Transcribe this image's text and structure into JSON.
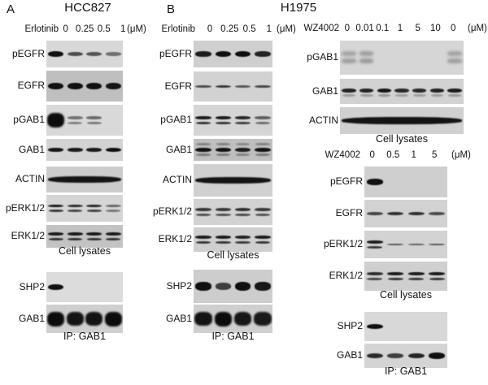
{
  "panels": [
    {
      "label": "A",
      "title": "HCC827"
    },
    {
      "label": "B",
      "title": "H1975"
    }
  ],
  "columns": [
    {
      "panel": "A",
      "cell_line": "HCC827",
      "sections": [
        {
          "header": {
            "drug": "Erlotinib",
            "doses": [
              "0",
              "0.25",
              "0.5",
              "1"
            ],
            "unit": "(μM)"
          },
          "blots": [
            {
              "label": "pEGFR",
              "style": "single",
              "thick": 7,
              "bg": "#d8d8d8",
              "lanes": [
                1,
                0.55,
                0.5,
                0.3
              ]
            },
            {
              "label": "EGFR",
              "style": "single",
              "thick": 8,
              "bg": "#bfbfbf",
              "lanes": [
                1,
                1,
                1,
                0.95
              ]
            },
            {
              "label": "pGAB1",
              "style": "double",
              "laneStyles": [
                "blob",
                "double",
                "double",
                ""
              ],
              "bg": "#d9d9d9",
              "lanes": [
                1,
                0.3,
                0.35,
                0
              ]
            },
            {
              "label": "GAB1",
              "style": "single",
              "thick": 5,
              "bg": "#d3d3d3",
              "lanes": [
                0.95,
                0.9,
                0.9,
                1
              ]
            },
            {
              "label": "ACTIN",
              "style": "continuous",
              "thick": 8,
              "bg": "#cccccc",
              "lanes": [
                1
              ]
            },
            {
              "label": "pERK1/2",
              "style": "double",
              "bg": "#d5d5d5",
              "lanes": [
                1,
                0.85,
                0.9,
                0.35
              ]
            },
            {
              "label": "ERK1/2",
              "style": "double",
              "bg": "#c3c3c3",
              "lanes": [
                1,
                1,
                1,
                1
              ]
            }
          ],
          "caption": "Cell lysates"
        },
        {
          "blots": [
            {
              "label": "SHP2",
              "style": "single",
              "thick": 7,
              "bg": "#dcdcdc",
              "lanes": [
                1,
                0,
                0,
                0
              ]
            },
            {
              "label": "GAB1",
              "style": "blob",
              "bg": "#cfcfcf",
              "lanes": [
                1,
                0.85,
                0.85,
                1
              ]
            }
          ],
          "caption": "IP: GAB1"
        }
      ]
    },
    {
      "panel": "B",
      "cell_line": "H1975",
      "sections": [
        {
          "header": {
            "drug": "Erlotinib",
            "doses": [
              "0",
              "0.25",
              "0.5",
              "1"
            ],
            "unit": "(μM)"
          },
          "blots": [
            {
              "label": "pEGFR",
              "style": "single",
              "thick": 7,
              "bg": "#cfcfcf",
              "lanes": [
                0.9,
                1,
                1,
                0.85
              ]
            },
            {
              "label": "EGFR",
              "style": "single",
              "thick": 4,
              "bg": "#d2d2d2",
              "lanes": [
                0.55,
                0.7,
                0.5,
                0.6
              ]
            },
            {
              "label": "pGAB1",
              "style": "double",
              "bg": "#d5d5d5",
              "lanes": [
                1,
                1,
                0.9,
                0.45
              ]
            },
            {
              "label": "GAB1",
              "style": "triple",
              "bg": "#bfbfbf",
              "lanes": [
                1,
                1,
                0.9,
                1
              ]
            },
            {
              "label": "ACTIN",
              "style": "continuous",
              "thick": 8,
              "bg": "#d0d0d0",
              "lanes": [
                1
              ]
            },
            {
              "label": "pERK1/2",
              "style": "double",
              "bg": "#d2d2d2",
              "lanes": [
                0.75,
                0.75,
                0.8,
                0.75
              ]
            },
            {
              "label": "ERK1/2",
              "style": "double",
              "bg": "#cfcfcf",
              "lanes": [
                1,
                1,
                0.95,
                1
              ]
            }
          ],
          "caption": "Cell lysates"
        },
        {
          "blots": [
            {
              "label": "SHP2",
              "style": "single",
              "thick": 10,
              "bg": "#cdcdcd",
              "lanes": [
                1,
                0.65,
                1,
                0.95
              ]
            },
            {
              "label": "GAB1",
              "style": "blob",
              "bg": "#cfcfcf",
              "lanes": [
                0.85,
                1,
                0.8,
                0.75
              ]
            }
          ],
          "caption": "IP: GAB1"
        }
      ]
    },
    {
      "panel": "B",
      "cell_line": "H1975",
      "sections": [
        {
          "header": {
            "drug": "WZ4002",
            "doses": [
              "0",
              "0.01",
              "0.1",
              "1",
              "5",
              "10",
              "0"
            ],
            "unit": "(μM)"
          },
          "blots": [
            {
              "label": "pGAB1",
              "style": "smear",
              "bg": "#d6d6d6",
              "lanes": [
                0.5,
                0.55,
                0,
                0,
                0,
                0,
                0.5
              ]
            },
            {
              "label": "GAB1",
              "style": "shadowed",
              "thick": 5,
              "bg": "#d2d2d2",
              "lanes": [
                0.9,
                0.9,
                1,
                0.85,
                0.85,
                0.9,
                0.95
              ]
            },
            {
              "label": "ACTIN",
              "style": "continuous",
              "thick": 9,
              "bg": "#d0d0d0",
              "lanes": [
                1
              ]
            }
          ],
          "caption": "Cell lysates"
        },
        {
          "header": {
            "drug": "WZ4002",
            "doses": [
              "0",
              "0.5",
              "1",
              "5"
            ],
            "unit": "(μM)"
          },
          "blots": [
            {
              "label": "pEGFR",
              "style": "single",
              "thick": 7,
              "bg": "#cfcfcf",
              "lanes": [
                1,
                0,
                0,
                0
              ]
            },
            {
              "label": "EGFR",
              "style": "single",
              "thick": 5,
              "bg": "#d2d2d2",
              "lanes": [
                0.6,
                0.75,
                0.75,
                0.55
              ]
            },
            {
              "label": "pERK1/2",
              "style": "single",
              "laneStyles": [
                "double",
                "single",
                "single",
                "single"
              ],
              "thick": 3,
              "bg": "#d3d3d3",
              "lanes": [
                1,
                0.45,
                0.4,
                0.45
              ]
            },
            {
              "label": "ERK1/2",
              "style": "double",
              "bg": "#cfcfcf",
              "lanes": [
                0.85,
                1,
                1,
                1
              ]
            }
          ],
          "caption": "Cell lysates"
        },
        {
          "blots": [
            {
              "label": "SHP2",
              "style": "single",
              "thick": 6,
              "bg": "#d8d8d8",
              "lanes": [
                1,
                0,
                0,
                0
              ]
            },
            {
              "label": "GAB1",
              "style": "single",
              "thick": 7,
              "bg": "#d4d4d4",
              "lanes": [
                0.8,
                0.65,
                0.85,
                1
              ]
            }
          ],
          "caption": "IP: GAB1"
        }
      ]
    }
  ]
}
